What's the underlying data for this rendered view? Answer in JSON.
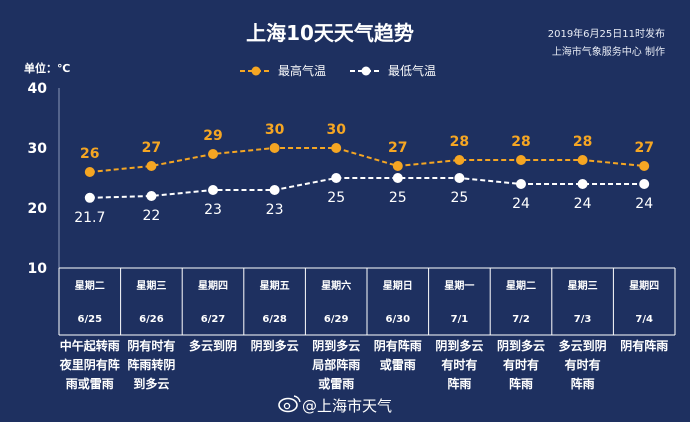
{
  "header": {
    "title": "上海10天天气趋势",
    "publish_time": "2019年6月25日11时发布",
    "publisher": "上海市气象服务中心  制作",
    "unit": "单位：℃"
  },
  "watermark": "@上海市天气",
  "colors": {
    "background": "#1e3060",
    "high": "#f5a623",
    "low": "#ffffff"
  },
  "chart_data": {
    "type": "line",
    "title": "上海10天天气趋势",
    "ylabel": "单位：℃",
    "ylim": [
      10,
      40
    ],
    "yticks": [
      "40",
      "30",
      "20",
      "10"
    ],
    "legend_position": "top-center",
    "categories": [
      "6/25",
      "6/26",
      "6/27",
      "6/28",
      "6/29",
      "6/30",
      "7/1",
      "7/2",
      "7/3",
      "7/4"
    ],
    "days": [
      "星期二",
      "星期三",
      "星期四",
      "星期五",
      "星期六",
      "星期日",
      "星期一",
      "星期二",
      "星期三",
      "星期四"
    ],
    "weather": [
      [
        "中午起转雨",
        "夜里阴有阵",
        "雨或雷雨"
      ],
      [
        "阴有时有",
        "阵雨转阴",
        "到多云"
      ],
      [
        "多云到阴"
      ],
      [
        "阴到多云"
      ],
      [
        "阴到多云",
        "局部阵雨",
        "或雷雨"
      ],
      [
        "阴有阵雨",
        "或雷雨"
      ],
      [
        "阴到多云",
        "有时有",
        "阵雨"
      ],
      [
        "阴到多云",
        "有时有",
        "阵雨"
      ],
      [
        "多云到阴",
        "有时有",
        "阵雨"
      ],
      [
        "阴有阵雨"
      ]
    ],
    "series": [
      {
        "name": "最高气温",
        "values": [
          26,
          27,
          29,
          30,
          30,
          27,
          28,
          28,
          28,
          27
        ],
        "labels": [
          "26",
          "27",
          "29",
          "30",
          "30",
          "27",
          "28",
          "28",
          "28",
          "27"
        ]
      },
      {
        "name": "最低气温",
        "values": [
          21.7,
          22,
          23,
          23,
          25,
          25,
          25,
          24,
          24,
          24
        ],
        "labels": [
          "21.7",
          "22",
          "23",
          "23",
          "25",
          "25",
          "25",
          "24",
          "24",
          "24"
        ]
      }
    ]
  }
}
